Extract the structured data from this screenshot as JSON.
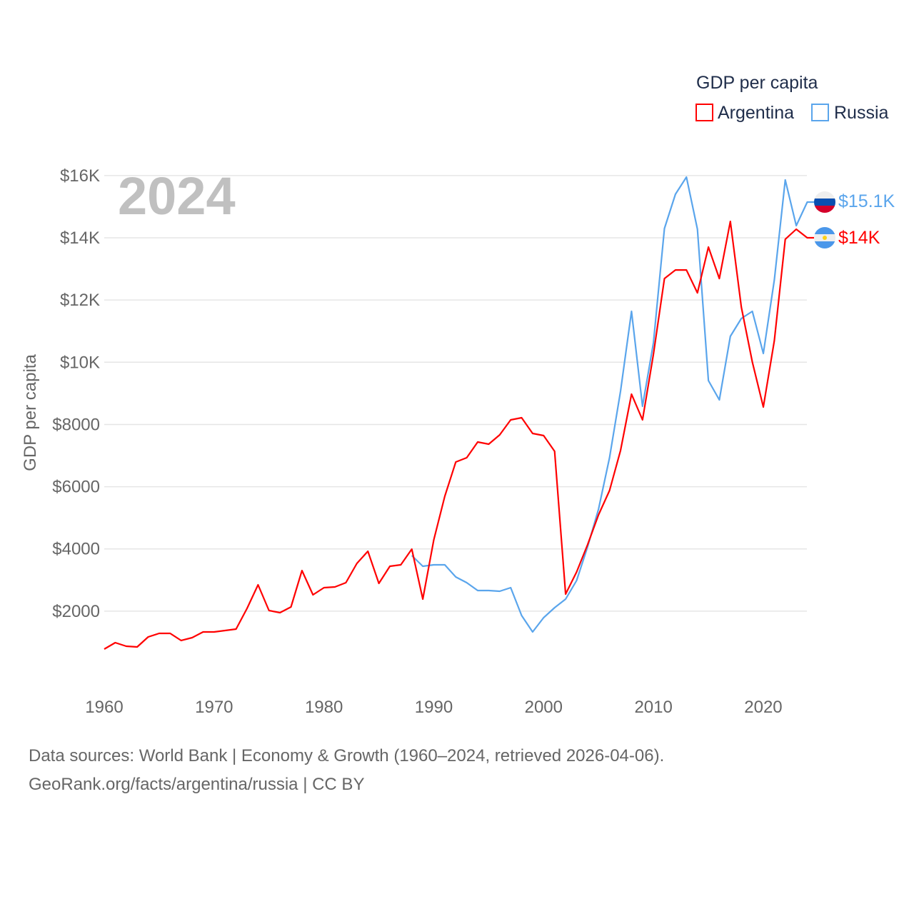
{
  "chart_data": {
    "type": "line",
    "title": "GDP per capita",
    "xlabel": "",
    "ylabel": "GDP per capita",
    "xlim": [
      1960,
      2024
    ],
    "ylim": [
      0,
      16000
    ],
    "grid": true,
    "legend_placement": "top-right",
    "current_year_label": "2024",
    "x_ticks": [
      1960,
      1970,
      1980,
      1990,
      2000,
      2010,
      2020
    ],
    "x_tick_labels": [
      "1960",
      "1970",
      "1980",
      "1990",
      "2000",
      "2010",
      "2020"
    ],
    "y_ticks": [
      2000,
      4000,
      6000,
      8000,
      10000,
      12000,
      14000,
      16000
    ],
    "y_tick_labels": [
      "$2000",
      "$4000",
      "$6000",
      "$8000",
      "$10K",
      "$12K",
      "$14K",
      "$16K"
    ],
    "series": [
      {
        "name": "Argentina",
        "color": "#ff0000",
        "end_label": "$14K",
        "start_year": 1960,
        "values": [
          780,
          987,
          872,
          849,
          1170,
          1285,
          1285,
          1056,
          1148,
          1331,
          1331,
          1377,
          1423,
          2088,
          2846,
          2020,
          1950,
          2134,
          3305,
          2525,
          2754,
          2777,
          2915,
          3534,
          3924,
          2892,
          3443,
          3488,
          3993,
          2387,
          4291,
          5692,
          6793,
          6931,
          7436,
          7367,
          7665,
          8147,
          8216,
          7711,
          7642,
          7137,
          2547,
          3259,
          4131,
          5095,
          5875,
          7160,
          8973,
          8147,
          10258,
          12691,
          12966,
          12966,
          12232,
          13701,
          12691,
          14527,
          11773,
          10006,
          8560,
          10694,
          13953,
          14275,
          14000
        ]
      },
      {
        "name": "Russia",
        "color": "#5aa5ec",
        "end_label": "$15.1K",
        "start_year": 1988,
        "values": [
          3787,
          3443,
          3488,
          3488,
          3098,
          2915,
          2662,
          2662,
          2639,
          2754,
          1859,
          1331,
          1790,
          2111,
          2387,
          2984,
          4062,
          5279,
          6931,
          9065,
          11636,
          8583,
          10626,
          14298,
          15400,
          15951,
          14275,
          9410,
          8790,
          10832,
          11406,
          11636,
          10282,
          12645,
          15859,
          14390,
          15147
        ]
      }
    ]
  },
  "footer": {
    "line1": "Data sources: World Bank | Economy & Growth (1960–2024, retrieved 2026-04-06).",
    "line2": "GeoRank.org/facts/argentina/russia | CC BY"
  }
}
